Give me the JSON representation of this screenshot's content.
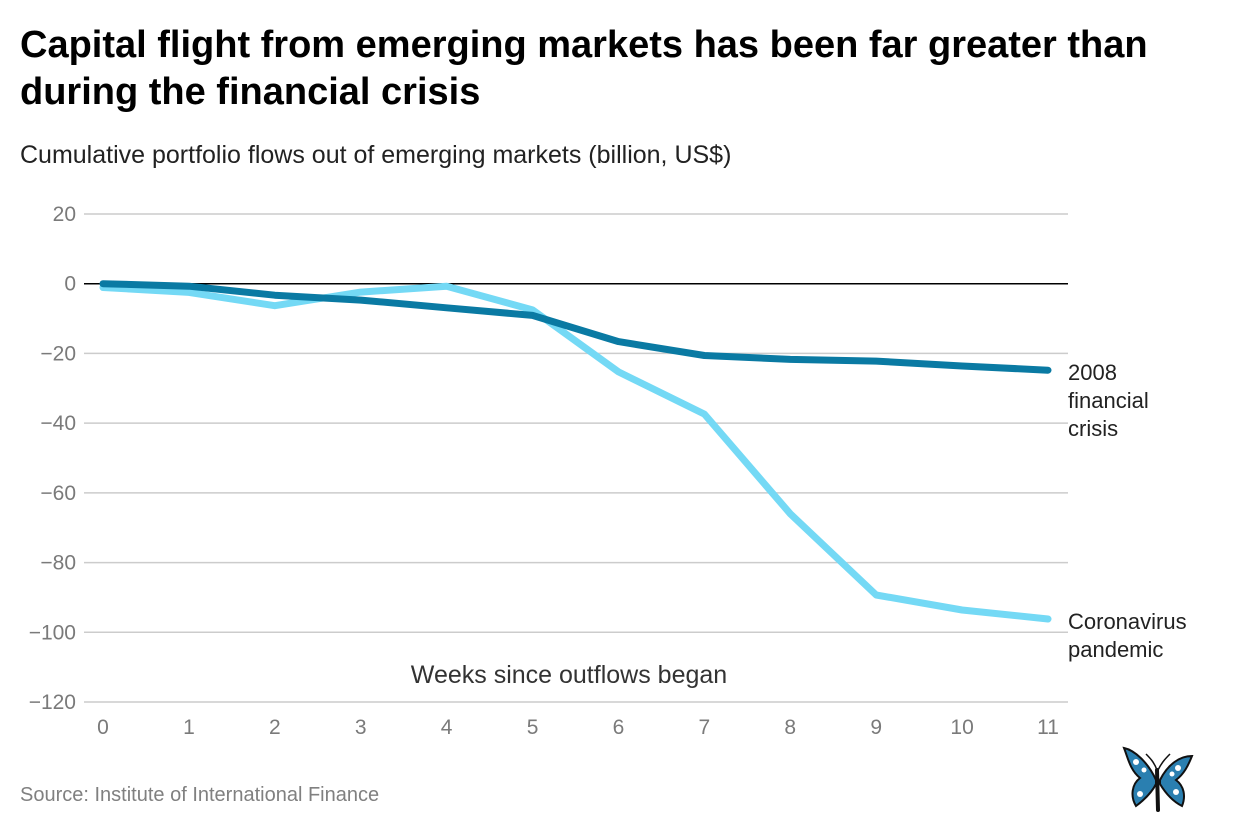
{
  "title": "Capital flight from emerging markets has been far greater than during the financial crisis",
  "subtitle": "Cumulative portfolio flows out of emerging markets (billion, US$)",
  "source": "Source: Institute of International Finance",
  "colors": {
    "crisis2008": "#0a7aa3",
    "coronavirus": "#74d9f5",
    "grid": "#cccccc",
    "zero": "#000000"
  },
  "logo_icon": "butterfly-logo-icon",
  "chart_data": {
    "type": "line",
    "title": "Capital flight from emerging markets has been far greater than during the financial crisis",
    "subtitle": "Cumulative portfolio flows out of emerging markets (billion, US$)",
    "xlabel": "Weeks since outflows began",
    "ylabel": "",
    "x": [
      0,
      1,
      2,
      3,
      4,
      5,
      6,
      7,
      8,
      9,
      10,
      11
    ],
    "xlim": [
      0,
      11
    ],
    "ylim": [
      -120,
      20
    ],
    "yticks": [
      20,
      0,
      -20,
      -40,
      -60,
      -80,
      -100,
      -120
    ],
    "ytick_labels": [
      "20",
      "0",
      "−20",
      "−40",
      "−60",
      "−80",
      "−100",
      "−120"
    ],
    "xtick_labels": [
      "0",
      "1",
      "2",
      "3",
      "4",
      "5",
      "6",
      "7",
      "8",
      "9",
      "10",
      "11"
    ],
    "grid": true,
    "series": [
      {
        "name": "2008 financial crisis",
        "label_lines": [
          "2008",
          "financial",
          "crisis"
        ],
        "values": [
          0,
          -0.7,
          -3.3,
          -4.7,
          -6.9,
          -9.1,
          -16.6,
          -20.6,
          -21.7,
          -22.2,
          -23.6,
          -24.8
        ]
      },
      {
        "name": "Coronavirus pandemic",
        "label_lines": [
          "Coronavirus",
          "pandemic"
        ],
        "values": [
          -1.1,
          -2.5,
          -6.3,
          -2.4,
          -0.7,
          -7.5,
          -25.3,
          -37.4,
          -66.0,
          -89.3,
          -93.6,
          -96.2
        ]
      }
    ]
  }
}
